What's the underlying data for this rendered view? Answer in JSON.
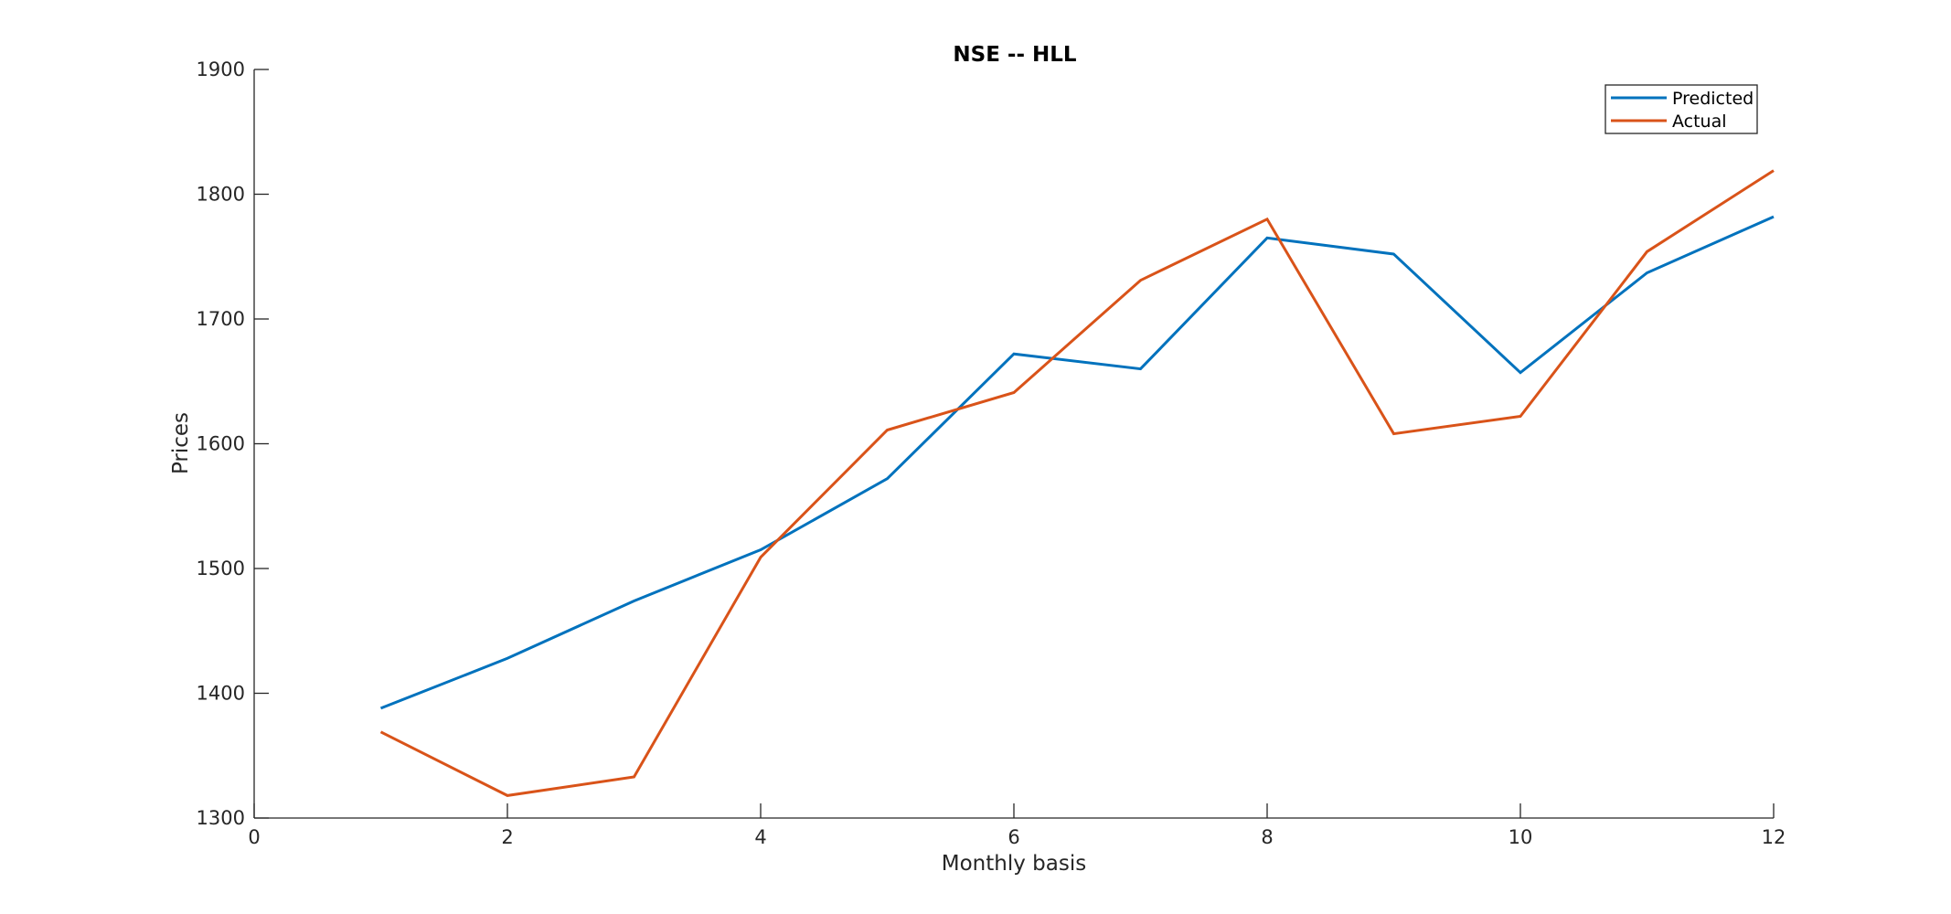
{
  "chart_data": {
    "type": "line",
    "title": "NSE -- HLL",
    "xlabel": "Monthly basis",
    "ylabel": "Prices",
    "xlim": [
      0,
      12
    ],
    "ylim": [
      1300,
      1900
    ],
    "xticks": [
      0,
      2,
      4,
      6,
      8,
      10,
      12
    ],
    "yticks": [
      1300,
      1400,
      1500,
      1600,
      1700,
      1800,
      1900
    ],
    "grid": false,
    "legend_position": "top-right",
    "x": [
      1,
      2,
      3,
      4,
      5,
      6,
      7,
      8,
      9,
      10,
      11,
      12
    ],
    "series": [
      {
        "name": "Predicted",
        "color": "#0072BD",
        "values": [
          1388,
          1428,
          1474,
          1515,
          1572,
          1672,
          1660,
          1765,
          1752,
          1657,
          1737,
          1782
        ]
      },
      {
        "name": "Actual",
        "color": "#D95319",
        "values": [
          1369,
          1318,
          1333,
          1509,
          1611,
          1641,
          1731,
          1780,
          1608,
          1622,
          1754,
          1819
        ]
      }
    ]
  }
}
